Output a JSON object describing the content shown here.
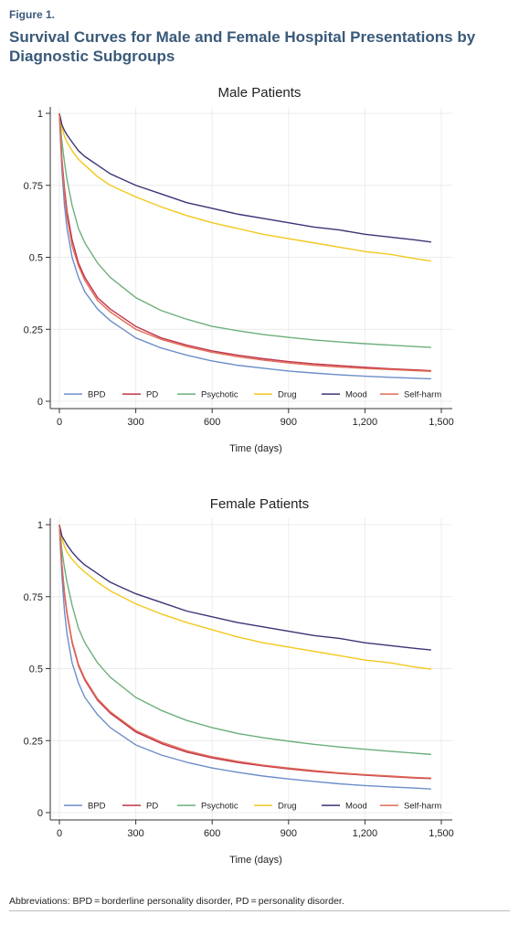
{
  "figure": {
    "label": "Figure 1.",
    "title": "Survival Curves for Male and Female Hospital Presentations by Diagnostic Subgroups",
    "footnote": "Abbreviations: BPD = borderline personality disorder, PD = personality disorder."
  },
  "colors": {
    "BPD": "#6b8ec9",
    "PD": "#c0344a",
    "Psychotic": "#6daf7c",
    "Drug": "#f2c81c",
    "Mood": "#3b3475",
    "Self-harm": "#e06a55"
  },
  "chart_data": [
    {
      "type": "line",
      "title": "Male Patients",
      "xlabel": "Time (days)",
      "ylabel": "",
      "xlim": [
        0,
        1500
      ],
      "ylim": [
        0,
        1
      ],
      "xticks": [
        0,
        300,
        600,
        900,
        1200,
        1500
      ],
      "xtick_labels": [
        "0",
        "300",
        "600",
        "900",
        "1,200",
        "1,500"
      ],
      "yticks": [
        0,
        0.25,
        0.5,
        0.75,
        1
      ],
      "ytick_labels": [
        "0",
        "0.25",
        "0.5",
        "0.75",
        "1"
      ],
      "grid": true,
      "legend_position": "bottom-inside",
      "x": [
        0,
        10,
        20,
        30,
        50,
        75,
        100,
        150,
        200,
        300,
        400,
        500,
        600,
        700,
        800,
        900,
        1000,
        1100,
        1200,
        1300,
        1400,
        1460
      ],
      "series": [
        {
          "name": "BPD",
          "values": [
            1,
            0.8,
            0.68,
            0.6,
            0.5,
            0.43,
            0.38,
            0.32,
            0.28,
            0.22,
            0.185,
            0.16,
            0.14,
            0.125,
            0.115,
            0.105,
            0.098,
            0.092,
            0.087,
            0.083,
            0.08,
            0.078
          ]
        },
        {
          "name": "PD",
          "values": [
            1,
            0.84,
            0.74,
            0.66,
            0.56,
            0.48,
            0.43,
            0.36,
            0.32,
            0.26,
            0.22,
            0.195,
            0.175,
            0.16,
            0.148,
            0.138,
            0.13,
            0.124,
            0.118,
            0.113,
            0.109,
            0.106
          ]
        },
        {
          "name": "Psychotic",
          "values": [
            1,
            0.9,
            0.83,
            0.77,
            0.68,
            0.6,
            0.55,
            0.48,
            0.43,
            0.36,
            0.315,
            0.285,
            0.26,
            0.245,
            0.232,
            0.222,
            0.213,
            0.206,
            0.2,
            0.195,
            0.19,
            0.187
          ]
        },
        {
          "name": "Drug",
          "values": [
            1,
            0.95,
            0.92,
            0.9,
            0.87,
            0.84,
            0.82,
            0.78,
            0.75,
            0.71,
            0.675,
            0.645,
            0.62,
            0.6,
            0.58,
            0.565,
            0.55,
            0.535,
            0.52,
            0.51,
            0.495,
            0.487
          ]
        },
        {
          "name": "Mood",
          "values": [
            1,
            0.96,
            0.94,
            0.925,
            0.9,
            0.87,
            0.85,
            0.82,
            0.79,
            0.75,
            0.72,
            0.69,
            0.67,
            0.65,
            0.635,
            0.62,
            0.605,
            0.595,
            0.58,
            0.57,
            0.56,
            0.553
          ]
        },
        {
          "name": "Self-harm",
          "values": [
            1,
            0.83,
            0.72,
            0.64,
            0.54,
            0.47,
            0.42,
            0.35,
            0.31,
            0.25,
            0.215,
            0.19,
            0.17,
            0.155,
            0.143,
            0.133,
            0.125,
            0.119,
            0.114,
            0.11,
            0.106,
            0.104
          ]
        }
      ]
    },
    {
      "type": "line",
      "title": "Female Patients",
      "xlabel": "Time (days)",
      "ylabel": "",
      "xlim": [
        0,
        1500
      ],
      "ylim": [
        0,
        1
      ],
      "xticks": [
        0,
        300,
        600,
        900,
        1200,
        1500
      ],
      "xtick_labels": [
        "0",
        "300",
        "600",
        "900",
        "1,200",
        "1,500"
      ],
      "yticks": [
        0,
        0.25,
        0.5,
        0.75,
        1
      ],
      "ytick_labels": [
        "0",
        "0.25",
        "0.5",
        "0.75",
        "1"
      ],
      "grid": true,
      "legend_position": "bottom-inside",
      "x": [
        0,
        10,
        20,
        30,
        50,
        75,
        100,
        150,
        200,
        300,
        400,
        500,
        600,
        700,
        800,
        900,
        1000,
        1100,
        1200,
        1300,
        1400,
        1460
      ],
      "series": [
        {
          "name": "BPD",
          "values": [
            1,
            0.82,
            0.7,
            0.62,
            0.52,
            0.45,
            0.4,
            0.34,
            0.295,
            0.235,
            0.2,
            0.175,
            0.155,
            0.14,
            0.127,
            0.117,
            0.108,
            0.1,
            0.094,
            0.089,
            0.085,
            0.082
          ]
        },
        {
          "name": "PD",
          "values": [
            1,
            0.86,
            0.76,
            0.69,
            0.59,
            0.51,
            0.46,
            0.39,
            0.345,
            0.28,
            0.24,
            0.21,
            0.19,
            0.174,
            0.162,
            0.152,
            0.143,
            0.136,
            0.13,
            0.125,
            0.12,
            0.118
          ]
        },
        {
          "name": "Psychotic",
          "values": [
            1,
            0.91,
            0.85,
            0.8,
            0.72,
            0.64,
            0.59,
            0.52,
            0.47,
            0.4,
            0.355,
            0.32,
            0.295,
            0.275,
            0.26,
            0.248,
            0.237,
            0.228,
            0.22,
            0.213,
            0.206,
            0.202
          ]
        },
        {
          "name": "Drug",
          "values": [
            1,
            0.95,
            0.925,
            0.905,
            0.88,
            0.855,
            0.835,
            0.8,
            0.77,
            0.725,
            0.69,
            0.66,
            0.635,
            0.61,
            0.59,
            0.575,
            0.56,
            0.545,
            0.53,
            0.52,
            0.505,
            0.498
          ]
        },
        {
          "name": "Mood",
          "values": [
            1,
            0.96,
            0.945,
            0.93,
            0.905,
            0.88,
            0.86,
            0.83,
            0.8,
            0.76,
            0.73,
            0.7,
            0.68,
            0.66,
            0.645,
            0.63,
            0.615,
            0.605,
            0.59,
            0.58,
            0.57,
            0.565
          ]
        },
        {
          "name": "Self-harm",
          "values": [
            1,
            0.86,
            0.765,
            0.695,
            0.595,
            0.515,
            0.465,
            0.395,
            0.35,
            0.285,
            0.245,
            0.215,
            0.194,
            0.178,
            0.165,
            0.155,
            0.146,
            0.138,
            0.132,
            0.127,
            0.122,
            0.12
          ]
        }
      ]
    }
  ]
}
